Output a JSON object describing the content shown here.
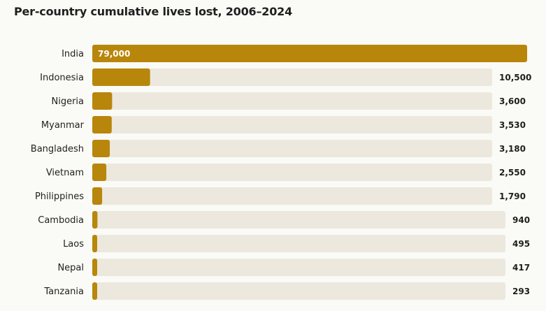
{
  "chart_data": {
    "type": "bar",
    "orientation": "horizontal",
    "title": "Per-country cumulative lives lost, 2006–2024",
    "categories": [
      "India",
      "Indonesia",
      "Nigeria",
      "Myanmar",
      "Bangladesh",
      "Vietnam",
      "Philippines",
      "Cambodia",
      "Laos",
      "Nepal",
      "Tanzania"
    ],
    "values": [
      79000,
      10500,
      3600,
      3530,
      3180,
      2550,
      1790,
      940,
      495,
      417,
      293
    ],
    "value_labels": [
      "79,000",
      "10,500",
      "3,600",
      "3,530",
      "3,180",
      "2,550",
      "1,790",
      "940",
      "495",
      "417",
      "293"
    ],
    "xlim": [
      0,
      79000
    ],
    "grid": false,
    "legend": "none",
    "colors": {
      "bar": "#b8860b",
      "track": "#ede8dd",
      "background": "#fafaf6"
    }
  }
}
